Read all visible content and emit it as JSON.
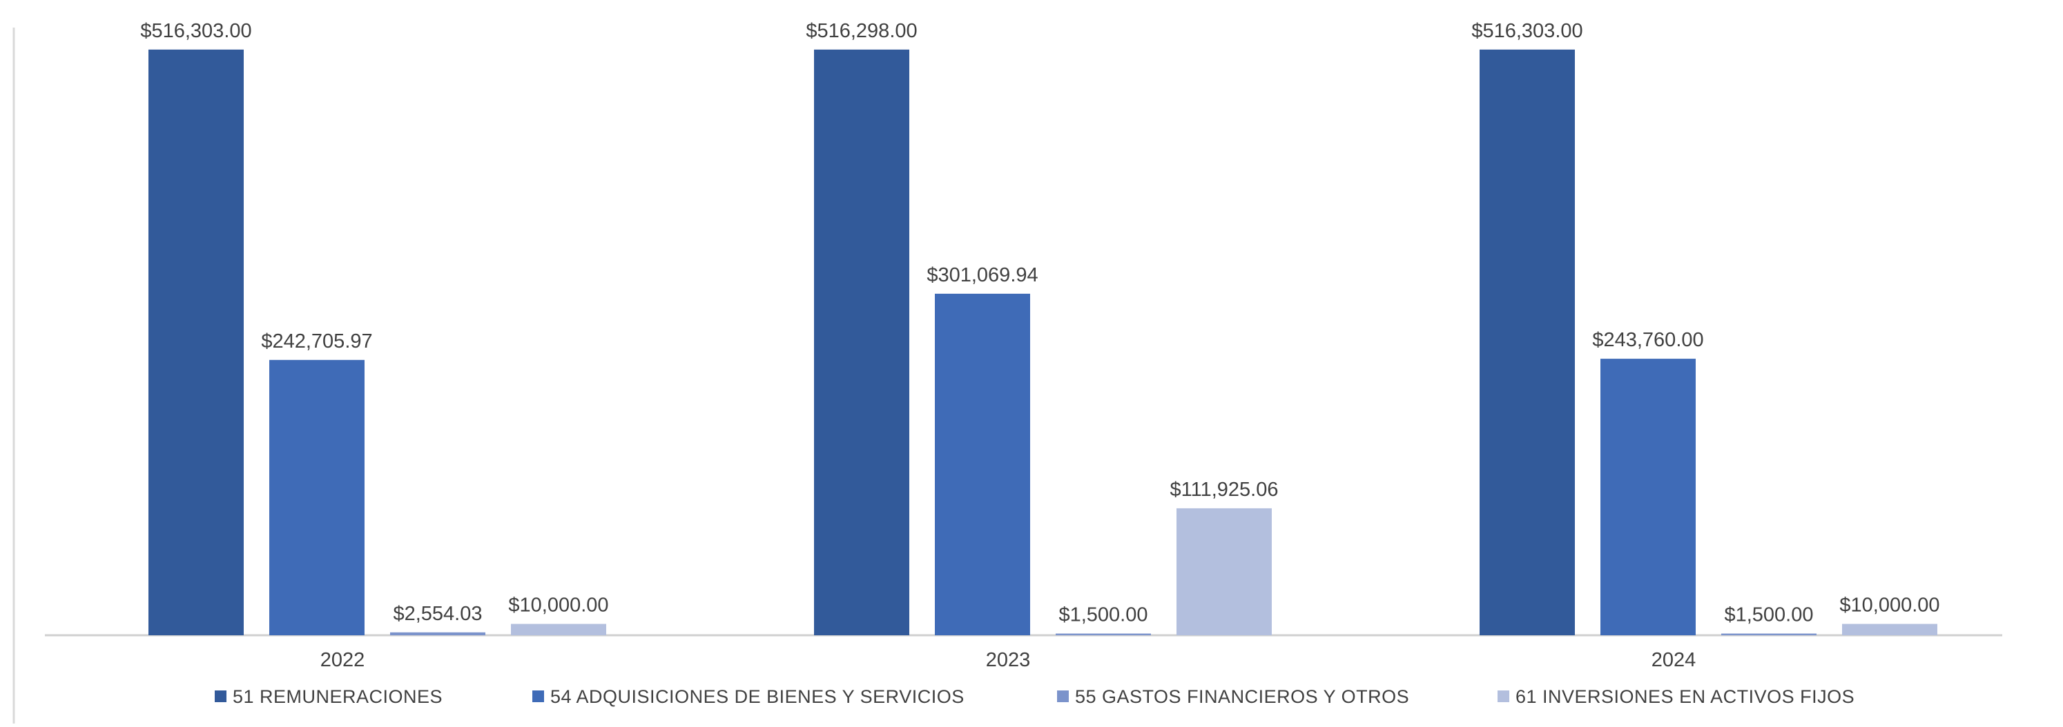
{
  "chart_data": {
    "type": "bar",
    "title": "",
    "xlabel": "",
    "ylabel": "",
    "categories": [
      "2022",
      "2023",
      "2024"
    ],
    "ylim": [
      0,
      560000
    ],
    "grid": false,
    "legend_position": "bottom",
    "series": [
      {
        "name": "51 REMUNERACIONES",
        "color": "#325A9A",
        "values": [
          516303.0,
          516298.0,
          516303.0
        ],
        "labels": [
          "$516,303.00",
          "$516,298.00",
          "$516,303.00"
        ]
      },
      {
        "name": "54 ADQUISICIONES DE BIENES Y SERVICIOS",
        "color": "#3F6BB7",
        "values": [
          242705.97,
          301069.94,
          243760.0
        ],
        "labels": [
          "$242,705.97",
          "$301,069.94",
          "$243,760.00"
        ]
      },
      {
        "name": "55 GASTOS FINANCIEROS Y OTROS",
        "color": "#7B93CB",
        "values": [
          2554.03,
          1500.0,
          1500.0
        ],
        "labels": [
          "$2,554.03",
          "$1,500.00",
          "$1,500.00"
        ]
      },
      {
        "name": "61 INVERSIONES EN ACTIVOS FIJOS",
        "color": "#B3BFDE",
        "values": [
          10000.0,
          111925.06,
          10000.0
        ],
        "labels": [
          "$10,000.00",
          "$111,925.06",
          "$10,000.00"
        ]
      }
    ]
  }
}
